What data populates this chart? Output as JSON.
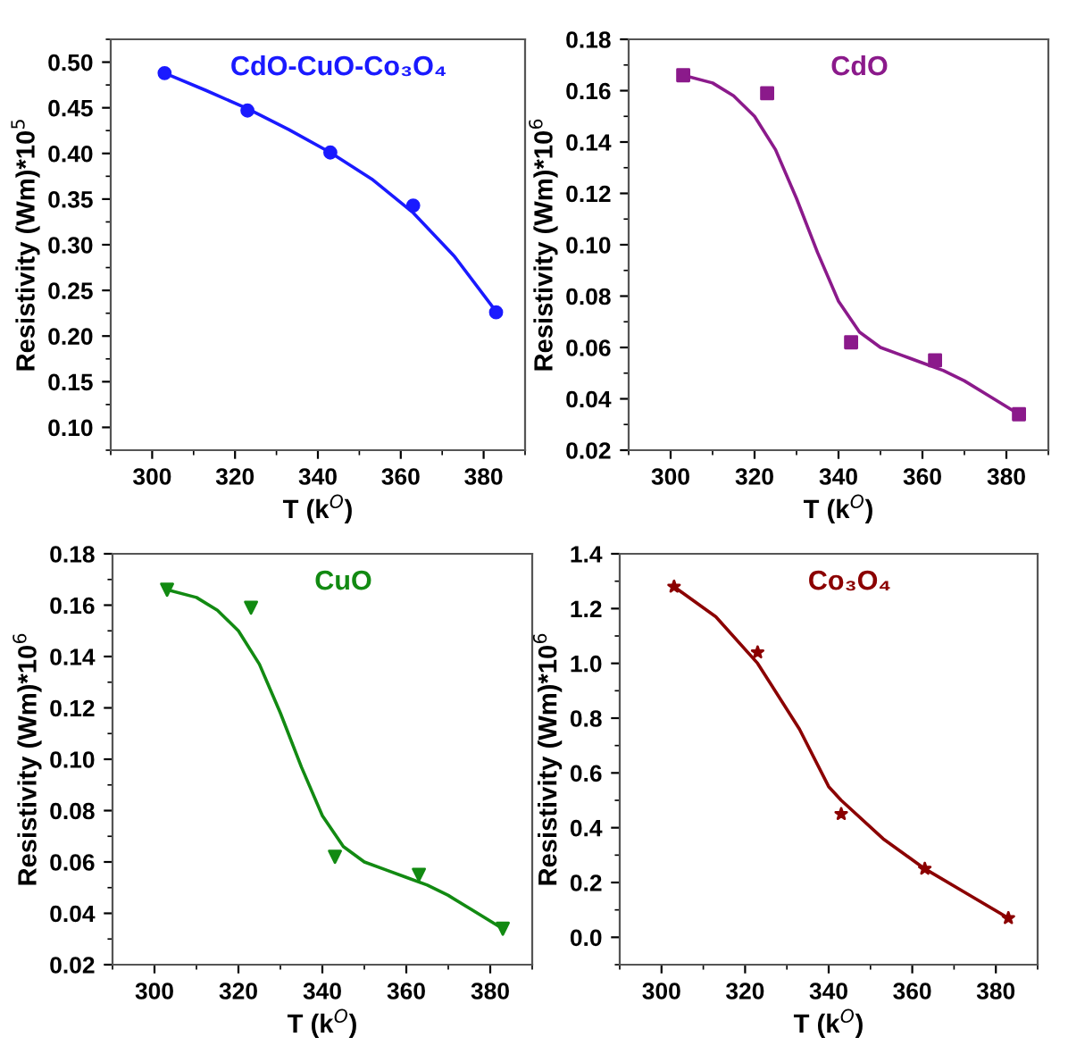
{
  "chart_data": [
    {
      "type": "scatter",
      "title": "CdO-CuO-Co₃O₄",
      "xlabel": "T (k$^{O}$)",
      "ylabel": "Resistivity (Wm)*10$^{5}$",
      "xlim": [
        290,
        390
      ],
      "xticks": [
        300,
        320,
        340,
        360,
        380
      ],
      "ylim": [
        0.075,
        0.525
      ],
      "yticks": [
        {
          "value": 0.1,
          "label": "0.10"
        },
        0.15,
        {
          "value": 0.2,
          "label": "0.20"
        },
        0.25,
        {
          "value": 0.3,
          "label": "0.30"
        },
        0.35,
        {
          "value": 0.4,
          "label": "0.40"
        },
        0.45,
        {
          "value": 0.5,
          "label": "0.50"
        }
      ],
      "marker": "circle",
      "grid": false,
      "series": [
        {
          "color": "#1a1aff",
          "x": [
            303,
            323,
            343,
            363,
            383
          ],
          "values": [
            0.488,
            0.447,
            0.401,
            0.343,
            0.226
          ]
        },
        {
          "type": "line",
          "color": "#1a1aff",
          "marker": "none",
          "x": [
            303,
            313,
            323,
            333,
            343,
            353,
            363,
            373,
            383
          ],
          "values": [
            0.488,
            0.469,
            0.449,
            0.426,
            0.401,
            0.372,
            0.335,
            0.287,
            0.227
          ]
        }
      ]
    },
    {
      "type": "scatter",
      "title": "CdO",
      "xlabel": "T (k$^{O}$)",
      "ylabel": "Resistivity (Wm)*10$^{6}$",
      "xlim": [
        290,
        390
      ],
      "xticks": [
        300,
        320,
        340,
        360,
        380
      ],
      "ylim": [
        0.02,
        0.18
      ],
      "yticks": [
        0.02,
        0.04,
        0.06,
        0.08,
        {
          "value": 0.1,
          "label": "0.10"
        },
        0.12,
        0.14,
        0.16,
        0.18
      ],
      "marker": "square",
      "grid": false,
      "series": [
        {
          "color": "#8b1a8b",
          "x": [
            303,
            323,
            343,
            363,
            383
          ],
          "values": [
            0.166,
            0.159,
            0.062,
            0.055,
            0.034
          ]
        },
        {
          "type": "line",
          "color": "#8b1a8b",
          "marker": "none",
          "x": [
            303,
            310,
            315,
            320,
            325,
            330,
            335,
            340,
            345,
            350,
            355,
            360,
            365,
            370,
            375,
            383
          ],
          "values": [
            0.166,
            0.163,
            0.158,
            0.15,
            0.137,
            0.118,
            0.097,
            0.078,
            0.066,
            0.06,
            0.057,
            0.054,
            0.051,
            0.047,
            0.042,
            0.034
          ]
        }
      ]
    },
    {
      "type": "scatter",
      "title": "CuO",
      "xlabel": "T (k$^{O}$)",
      "ylabel": "Resistivity (Wm)*10$^{6}$",
      "xlim": [
        290,
        390
      ],
      "xticks": [
        300,
        320,
        340,
        360,
        380
      ],
      "ylim": [
        0.02,
        0.18
      ],
      "yticks": [
        0.02,
        0.04,
        0.06,
        0.08,
        {
          "value": 0.1,
          "label": "0.10"
        },
        0.12,
        0.14,
        0.16,
        0.18
      ],
      "marker": "triangle",
      "grid": false,
      "series": [
        {
          "color": "#128a12",
          "x": [
            303,
            323,
            343,
            363,
            383
          ],
          "values": [
            0.166,
            0.159,
            0.062,
            0.055,
            0.034
          ]
        },
        {
          "type": "line",
          "color": "#128a12",
          "marker": "none",
          "x": [
            303,
            310,
            315,
            320,
            325,
            330,
            335,
            340,
            345,
            350,
            355,
            360,
            365,
            370,
            375,
            383
          ],
          "values": [
            0.166,
            0.163,
            0.158,
            0.15,
            0.137,
            0.118,
            0.097,
            0.078,
            0.066,
            0.06,
            0.057,
            0.054,
            0.051,
            0.047,
            0.042,
            0.034
          ]
        }
      ]
    },
    {
      "type": "scatter",
      "title": "Co₃O₄",
      "xlabel": "T (k$^{O}$)",
      "ylabel": "Resistivity (Wm)*10$^{6}$",
      "xlim": [
        290,
        390
      ],
      "xticks": [
        300,
        320,
        340,
        360,
        380
      ],
      "ylim": [
        -0.1,
        1.4
      ],
      "yticks": [
        {
          "value": 0,
          "label": "0.0"
        },
        0.2,
        0.4,
        0.6,
        0.8,
        {
          "value": 1,
          "label": "1.0"
        },
        1.2,
        1.4
      ],
      "marker": "star",
      "grid": false,
      "series": [
        {
          "color": "#8b0000",
          "x": [
            303,
            323,
            343,
            363,
            383
          ],
          "values": [
            1.28,
            1.04,
            0.45,
            0.25,
            0.07
          ]
        },
        {
          "type": "line",
          "color": "#8b0000",
          "marker": "none",
          "x": [
            303,
            313,
            323,
            333,
            340,
            343,
            353,
            363,
            373,
            383
          ],
          "values": [
            1.28,
            1.17,
            1.0,
            0.76,
            0.55,
            0.5,
            0.36,
            0.25,
            0.16,
            0.07
          ]
        }
      ]
    }
  ]
}
